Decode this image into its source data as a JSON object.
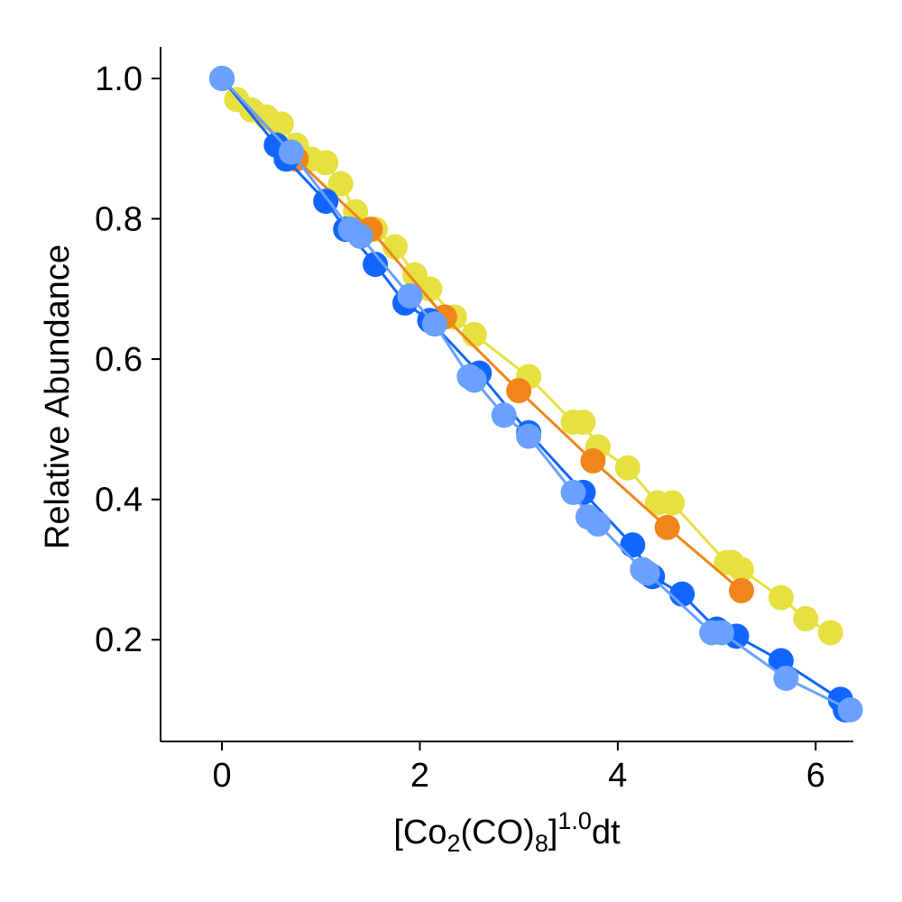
{
  "chart_data": {
    "type": "scatter",
    "title": "",
    "xlabel": {
      "prefix": "[Co",
      "sub1": "2",
      "mid": "(CO)",
      "sub2": "8",
      "close": "]",
      "sup": "1.0",
      "suffix": "dt"
    },
    "ylabel": "Relative Abundance",
    "xlim": [
      -0.62,
      6.38
    ],
    "ylim": [
      0.055,
      1.045
    ],
    "xticks": [
      0,
      2,
      4,
      6
    ],
    "xtick_labels": [
      "0",
      "2",
      "4",
      "6"
    ],
    "yticks": [
      0.2,
      0.4,
      0.6,
      0.8,
      1.0
    ],
    "ytick_labels": [
      "0.2",
      "0.4",
      "0.6",
      "0.8",
      "1.0"
    ],
    "grid": false,
    "series": [
      {
        "color": "#e6e040",
        "x": [
          0,
          0.15,
          0.3,
          0.45,
          0.6,
          0.75,
          0.9,
          1.05,
          1.2,
          1.35,
          1.55,
          1.75,
          1.95,
          2.1,
          2.35,
          2.55,
          3.1,
          3.55,
          3.65,
          3.8,
          4.1,
          4.4,
          4.55,
          5.1,
          5.15,
          5.25,
          5.65,
          5.9,
          6.15
        ],
        "y": [
          1.0,
          0.97,
          0.955,
          0.945,
          0.935,
          0.905,
          0.885,
          0.88,
          0.85,
          0.81,
          0.785,
          0.76,
          0.72,
          0.7,
          0.66,
          0.635,
          0.575,
          0.51,
          0.51,
          0.475,
          0.445,
          0.395,
          0.395,
          0.31,
          0.31,
          0.3,
          0.26,
          0.23,
          0.21
        ]
      },
      {
        "color": "#f0861a",
        "x": [
          0,
          0.75,
          1.5,
          2.25,
          3.0,
          3.75,
          4.5,
          5.25
        ],
        "y": [
          1.0,
          0.885,
          0.785,
          0.66,
          0.555,
          0.455,
          0.36,
          0.27
        ]
      },
      {
        "color": "#1166ff",
        "x": [
          0,
          0.55,
          0.65,
          1.05,
          1.25,
          1.55,
          1.85,
          2.1,
          2.6,
          3.1,
          3.65,
          4.15,
          4.35,
          4.65,
          5.0,
          5.2,
          5.65,
          6.25,
          6.3
        ],
        "y": [
          1.0,
          0.905,
          0.885,
          0.825,
          0.785,
          0.735,
          0.68,
          0.655,
          0.58,
          0.495,
          0.41,
          0.335,
          0.29,
          0.265,
          0.215,
          0.205,
          0.17,
          0.115,
          0.1
        ]
      },
      {
        "color": "#6aa0ff",
        "x": [
          0,
          0.7,
          1.3,
          1.4,
          1.9,
          2.15,
          2.5,
          2.55,
          2.85,
          3.1,
          3.55,
          3.7,
          3.8,
          4.25,
          4.3,
          4.95,
          5.05,
          5.7,
          6.35
        ],
        "y": [
          1.0,
          0.895,
          0.785,
          0.775,
          0.69,
          0.65,
          0.575,
          0.57,
          0.52,
          0.49,
          0.41,
          0.375,
          0.365,
          0.3,
          0.295,
          0.21,
          0.21,
          0.145,
          0.1
        ]
      }
    ]
  }
}
